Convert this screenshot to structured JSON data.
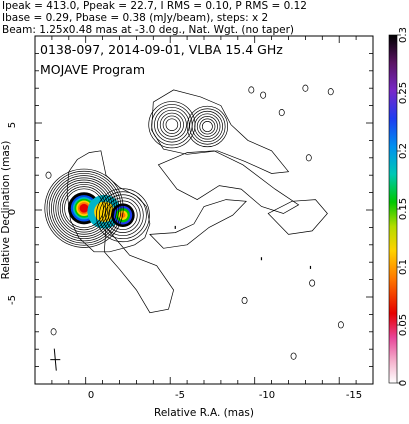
{
  "header": {
    "line1": "Ipeak = 413.0, Ppeak = 22.7, I RMS = 0.10, P RMS = 0.12",
    "line2": "Ibase = 0.29, Pbase = 0.38 (mJy/beam), steps: x 2",
    "line3": "Beam: 1.25x0.48 mas at -3.0 deg., Nat. Wgt. (no taper)"
  },
  "plot_text": {
    "title": "0138-097, 2014-09-01, VLBA 15.4 GHz",
    "program": "MOJAVE Program"
  },
  "chart_data": {
    "type": "contour",
    "xlabel": "Relative R.A. (mas)",
    "ylabel": "Relative Declination (mas)",
    "xlim": [
      3,
      -17
    ],
    "ylim": [
      -10,
      10
    ],
    "x_ticks": [
      "0",
      "-5",
      "-10",
      "-15"
    ],
    "y_ticks": [
      "5",
      "0",
      "-5"
    ],
    "colorbar": {
      "min": 0,
      "max": 0.3,
      "ticks": [
        "0.3",
        "0.25",
        "0.2",
        "0.15",
        "0.1",
        "0.05",
        "0"
      ]
    },
    "components": [
      {
        "x": 0.1,
        "y": 0.1,
        "peak_mJy_per_beam": 413.0
      },
      {
        "x": -2.2,
        "y": -0.3
      },
      {
        "x": -5.1,
        "y": 4.9
      },
      {
        "x": -7.2,
        "y": 4.8
      }
    ],
    "peaks": {
      "I_peak": 413.0,
      "P_peak": 22.7
    }
  }
}
